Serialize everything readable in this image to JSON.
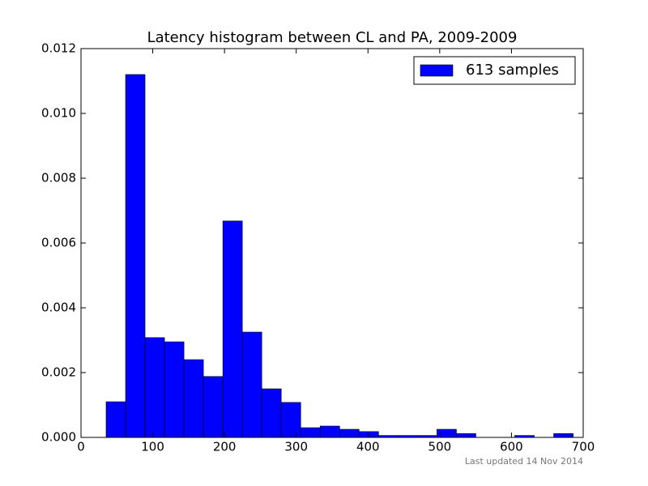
{
  "chart_data": {
    "type": "histogram",
    "title": "Latency histogram between CL and PA, 2009-2009",
    "footer": "Last updated 14 Nov 2014",
    "bins": [
      35,
      62.125,
      89.25,
      116.375,
      143.5,
      170.625,
      197.75,
      224.875,
      252,
      279.125,
      306.25,
      333.375,
      360.5,
      387.625,
      414.75,
      441.875,
      469,
      496.125,
      523.25,
      550.375,
      577.5,
      604.625,
      631.75,
      658.875,
      686
    ],
    "series": [
      {
        "name": "613 samples",
        "color": "#0000ff",
        "values": [
          0.0011,
          0.0112,
          0.00308,
          0.00295,
          0.0024,
          0.00188,
          0.00668,
          0.00325,
          0.0015,
          0.00108,
          0.0003,
          0.00035,
          0.00025,
          0.00018,
          6e-05,
          6e-05,
          6e-05,
          0.00025,
          0.00012,
          0,
          0,
          6e-05,
          0,
          0.00012
        ]
      }
    ],
    "xlim": [
      0,
      700
    ],
    "xticks": [
      0,
      100,
      200,
      300,
      400,
      500,
      600,
      700
    ],
    "ylim": [
      0,
      0.012
    ],
    "yticks": [
      {
        "value": 0,
        "label": "0.000"
      },
      {
        "value": 0.002,
        "label": "0.002"
      },
      {
        "value": 0.004,
        "label": "0.004"
      },
      {
        "value": 0.006,
        "label": "0.006"
      },
      {
        "value": 0.008,
        "label": "0.008"
      },
      {
        "value": 0.01,
        "label": "0.010"
      },
      {
        "value": 0.012,
        "label": "0.012"
      }
    ],
    "legend": "upper right"
  }
}
